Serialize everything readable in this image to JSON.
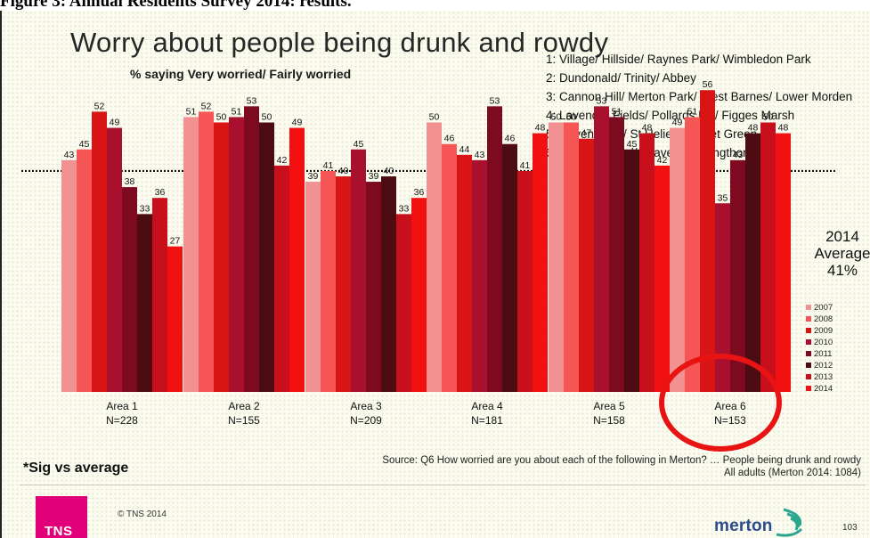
{
  "caption": "Figure 3: Annual Residents Survey 2014: results.",
  "slide_title": "Worry about people being drunk and rowdy",
  "area_list": [
    "1: Village/ Hillside/ Raynes Park/ Wimbledon Park",
    "2: Dundonald/ Trinity/ Abbey",
    "3: Cannon Hill/ Merton Park/ West Barnes/ Lower Morden",
    "4: Lavender Fields/ Pollards Hill/ Figges Marsh",
    "5: Ravensbury/ St Helier/ Cricket Green",
    "6: Colliers Wood/ Graveney/ Longthornton"
  ],
  "average": {
    "line1": "2014",
    "line2": "Average",
    "line3": "41%"
  },
  "sig_note": "*Sig vs average",
  "source_line1": "Source: Q6 How worried are you about each of the following in Merton? … People being drunk and rowdy",
  "source_line2": "All adults (Merton 2014: 1084)",
  "copyright": "© TNS 2014",
  "tns_logo": "TNS",
  "merton_logo": "merton",
  "page_number": "103",
  "colors": {
    "series": [
      "#f29191",
      "#f65656",
      "#d91414",
      "#a8102d",
      "#7d0a1f",
      "#4d0c12",
      "#c8101c",
      "#f21010"
    ],
    "average_line": "#111111",
    "highlight_circle": "#e81414"
  },
  "chart_data": {
    "type": "bar",
    "title": "Worry about people being drunk and rowdy",
    "subtitle": "% saying Very worried/ Fairly worried",
    "categories": [
      "Area 1",
      "Area 2",
      "Area 3",
      "Area 4",
      "Area 5",
      "Area 6"
    ],
    "category_sublabels": [
      "N=228",
      "N=155",
      "N=209",
      "N=181",
      "N=158",
      "N=153"
    ],
    "series": [
      {
        "name": "2007",
        "values": [
          43,
          51,
          39,
          50,
          50,
          49
        ]
      },
      {
        "name": "2008",
        "values": [
          45,
          52,
          41,
          46,
          50,
          51
        ]
      },
      {
        "name": "2009",
        "values": [
          52,
          50,
          40,
          44,
          47,
          56
        ]
      },
      {
        "name": "2010",
        "values": [
          49,
          51,
          45,
          43,
          53,
          35
        ]
      },
      {
        "name": "2011",
        "values": [
          38,
          53,
          39,
          53,
          51,
          43
        ]
      },
      {
        "name": "2012",
        "values": [
          33,
          50,
          40,
          46,
          45,
          48
        ]
      },
      {
        "name": "2013",
        "values": [
          36,
          42,
          33,
          41,
          48,
          50
        ]
      },
      {
        "name": "2014",
        "values": [
          27,
          49,
          36,
          48,
          42,
          48
        ]
      }
    ],
    "significance_marked": [
      {
        "category": "Area 3",
        "series": "2014",
        "marker": "*"
      }
    ],
    "average_2014": 41,
    "ylim": [
      0,
      60
    ],
    "legend": "right",
    "grid": false,
    "highlighted_category": "Area 6"
  }
}
